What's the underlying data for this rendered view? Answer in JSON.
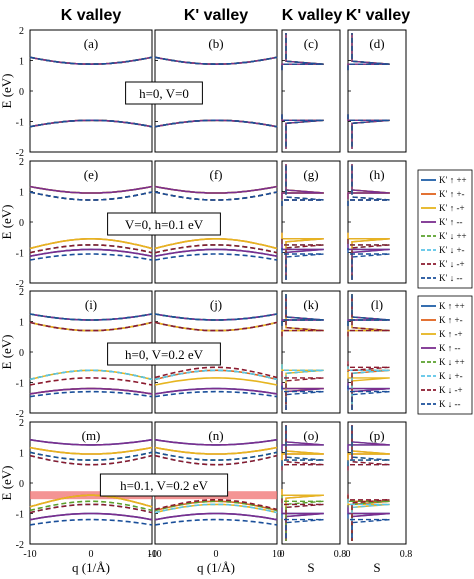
{
  "colors": {
    "up_pp": "#1f5fa8",
    "up_pm": "#e0621e",
    "up_mp": "#e6b520",
    "up_mm": "#7b2e8e",
    "dn_pp": "#5aa02c",
    "dn_pm": "#5bc4e8",
    "dn_mp": "#8b1a2e",
    "dn_mm": "#1a4f9a",
    "gap_band": "#f07070"
  },
  "headers": [
    "K valley",
    "K' valley",
    "K valley",
    "K' valley"
  ],
  "y_axis_label": "E (eV)",
  "x_axis_label_band": "q (1/Å)",
  "x_axis_label_dos": "S",
  "legends": [
    {
      "entries": [
        {
          "label": "K′ ↑ ++",
          "color": "#1f5fa8",
          "dash": false
        },
        {
          "label": "K′ ↑ +-",
          "color": "#e0621e",
          "dash": false
        },
        {
          "label": "K′ ↑ -+",
          "color": "#e6b520",
          "dash": false
        },
        {
          "label": "K′ ↑ --",
          "color": "#7b2e8e",
          "dash": false
        },
        {
          "label": "K′ ↓ ++",
          "color": "#5aa02c",
          "dash": true
        },
        {
          "label": "K′ ↓ +-",
          "color": "#5bc4e8",
          "dash": true
        },
        {
          "label": "K′ ↓ -+",
          "color": "#8b1a2e",
          "dash": true
        },
        {
          "label": "K′ ↓ --",
          "color": "#1a4f9a",
          "dash": true
        }
      ]
    },
    {
      "entries": [
        {
          "label": "K ↑ ++",
          "color": "#1f5fa8",
          "dash": false
        },
        {
          "label": "K ↑ +-",
          "color": "#e0621e",
          "dash": false
        },
        {
          "label": "K ↑ -+",
          "color": "#e6b520",
          "dash": false
        },
        {
          "label": "K ↑ --",
          "color": "#7b2e8e",
          "dash": false
        },
        {
          "label": "K ↓ ++",
          "color": "#5aa02c",
          "dash": true
        },
        {
          "label": "K ↓ +-",
          "color": "#5bc4e8",
          "dash": true
        },
        {
          "label": "K ↓ -+",
          "color": "#8b1a2e",
          "dash": true
        },
        {
          "label": "K ↓ --",
          "color": "#1a4f9a",
          "dash": true
        }
      ]
    }
  ],
  "chart_data": {
    "type": "line",
    "band_xlim": [
      -10,
      10
    ],
    "band_xticks": [
      "-10",
      "0",
      "10"
    ],
    "dos_xlim": [
      0,
      0.8
    ],
    "dos_xticks": [
      "0",
      "0.8"
    ],
    "ylim": [
      -2,
      2
    ],
    "yticks": [
      "-2",
      "-1",
      "0",
      "1",
      "2"
    ],
    "rows": [
      {
        "condition": "h=0,  V=0",
        "labels": [
          "(a)",
          "(b)",
          "(c)",
          "(d)"
        ],
        "K_band_edges": {
          "up_pp": [
            0.88,
            -0.96
          ],
          "up_pm": [
            0.88,
            -0.96
          ],
          "up_mp": [
            0.88,
            -0.96
          ],
          "up_mm": [
            0.88,
            -0.96
          ],
          "dn_pp": [
            0.88,
            -0.96
          ],
          "dn_pm": [
            0.88,
            -0.96
          ],
          "dn_mp": [
            0.88,
            -0.96
          ],
          "dn_mm": [
            0.88,
            -0.96
          ]
        },
        "Kp_band_edges": {
          "up_pp": [
            0.88,
            -0.96
          ],
          "up_pm": [
            0.88,
            -0.96
          ],
          "up_mp": [
            0.88,
            -0.96
          ],
          "up_mm": [
            0.88,
            -0.96
          ],
          "dn_pp": [
            0.88,
            -0.96
          ],
          "dn_pm": [
            0.88,
            -0.96
          ],
          "dn_mp": [
            0.88,
            -0.96
          ],
          "dn_mm": [
            0.88,
            -0.96
          ]
        }
      },
      {
        "condition": "V=0,  h=0.1 eV",
        "labels": [
          "(e)",
          "(f)",
          "(g)",
          "(h)"
        ],
        "K_band_edges": {
          "up_pp": [
            0.95,
            -0.9
          ],
          "up_pm": [
            0.95,
            -0.55
          ],
          "up_mp": [
            0.95,
            -0.55
          ],
          "up_mm": [
            0.95,
            -0.9
          ],
          "dn_pp": [
            0.72,
            -0.75
          ],
          "dn_pm": [
            0.72,
            -0.75
          ],
          "dn_mp": [
            0.72,
            -0.75
          ],
          "dn_mm": [
            0.72,
            -1.05
          ]
        },
        "Kp_band_edges": {
          "up_pp": [
            0.95,
            -0.9
          ],
          "up_pm": [
            0.95,
            -0.55
          ],
          "up_mp": [
            0.95,
            -0.55
          ],
          "up_mm": [
            0.95,
            -0.9
          ],
          "dn_pp": [
            0.72,
            -0.75
          ],
          "dn_pm": [
            0.72,
            -0.75
          ],
          "dn_mp": [
            0.72,
            -0.75
          ],
          "dn_mm": [
            0.72,
            -1.05
          ]
        }
      },
      {
        "condition": "h=0,  V=0.2 eV",
        "labels": [
          "(i)",
          "(j)",
          "(k)",
          "(l)"
        ],
        "K_band_edges": {
          "up_pp": [
            1.05,
            -1.2
          ],
          "up_pm": [
            0.7,
            -1.2
          ],
          "up_mp": [
            0.7,
            -0.6
          ],
          "up_mm": [
            1.05,
            -1.2
          ],
          "dn_pp": [
            1.05,
            -0.6
          ],
          "dn_pm": [
            0.7,
            -0.6
          ],
          "dn_mp": [
            0.7,
            -0.85
          ],
          "dn_mm": [
            1.05,
            -1.3
          ]
        },
        "Kp_band_edges": {
          "up_pp": [
            1.05,
            -1.2
          ],
          "up_pm": [
            0.7,
            -0.6
          ],
          "up_mp": [
            0.7,
            -0.85
          ],
          "up_mm": [
            1.05,
            -1.2
          ],
          "dn_pp": [
            1.05,
            -0.6
          ],
          "dn_pm": [
            0.7,
            -0.6
          ],
          "dn_mp": [
            0.7,
            -0.5
          ],
          "dn_mm": [
            1.05,
            -1.3
          ]
        }
      },
      {
        "condition": "h=0.1,  V=0.2 eV",
        "labels": [
          "(m)",
          "(n)",
          "(o)",
          "(p)"
        ],
        "gap_band_energy": -0.4,
        "K_band_edges": {
          "up_pp": [
            1.25,
            -1.0
          ],
          "up_pm": [
            0.95,
            -0.4
          ],
          "up_mp": [
            0.95,
            -0.4
          ],
          "up_mm": [
            1.25,
            -1.0
          ],
          "dn_pp": [
            0.75,
            -0.6
          ],
          "dn_pm": [
            0.6,
            -0.7
          ],
          "dn_mp": [
            0.6,
            -0.7
          ],
          "dn_mm": [
            0.75,
            -1.2
          ]
        },
        "Kp_band_edges": {
          "up_pp": [
            1.25,
            -1.0
          ],
          "up_pm": [
            0.95,
            -0.6
          ],
          "up_mp": [
            0.95,
            -0.7
          ],
          "up_mm": [
            1.25,
            -1.0
          ],
          "dn_pp": [
            0.75,
            -0.6
          ],
          "dn_pm": [
            0.6,
            -0.7
          ],
          "dn_mp": [
            0.6,
            -0.55
          ],
          "dn_mm": [
            0.75,
            -1.2
          ]
        }
      }
    ]
  }
}
